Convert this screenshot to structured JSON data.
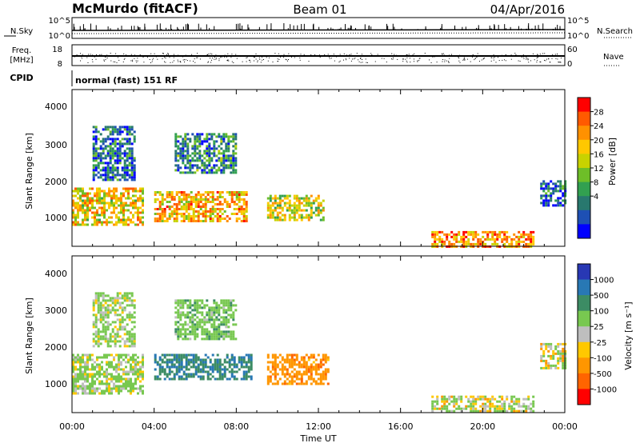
{
  "header": {
    "station": "McMurdo (fitACF)",
    "beam": "Beam 01",
    "date": "04/Apr/2016"
  },
  "top_panels": {
    "nsky_label": "N.Sky",
    "nsky_ticks": [
      "10^5",
      "10^0"
    ],
    "nsearch_label": "N.Search",
    "nsearch_ticks": [
      "10^5",
      "10^0"
    ],
    "freq_label_1": "Freq.",
    "freq_label_2": "[MHz]",
    "freq_ticks": [
      "18",
      "8"
    ],
    "nave_label": "Nave",
    "nave_ticks": [
      "60",
      "0"
    ],
    "cpid_label": "CPID",
    "cpid_value": "normal (fast) 151 RF"
  },
  "axes": {
    "ylabel": "Slant Range [km]",
    "y_ticks": [
      "1000",
      "2000",
      "3000",
      "4000"
    ],
    "x_ticks": [
      "00:00",
      "04:00",
      "08:00",
      "12:00",
      "16:00",
      "20:00",
      "00:00"
    ],
    "xlabel": "Time UT"
  },
  "power_scale": {
    "label": "Power [dB]",
    "ticks": [
      "28",
      "24",
      "20",
      "16",
      "12",
      "8",
      "4"
    ],
    "colors": [
      "#ff0000",
      "#ff5a00",
      "#ff9100",
      "#ffc800",
      "#c8d200",
      "#6ebe28",
      "#32a050",
      "#28786e",
      "#1e50b4",
      "#0000ff"
    ]
  },
  "velocity_scale": {
    "label": "Velocity [m s⁻¹]",
    "ticks": [
      "1000",
      "500",
      "100",
      "25",
      "-25",
      "-100",
      "-500",
      "-1000"
    ],
    "colors": [
      "#2838b4",
      "#2878b4",
      "#3c8c64",
      "#78c850",
      "#bebebe",
      "#ffc800",
      "#ff9600",
      "#ff6400",
      "#ff0000"
    ]
  },
  "chart_data": {
    "type": "heatmap",
    "time_range_hours": [
      0,
      24
    ],
    "slant_range_km": [
      180,
      4500
    ],
    "power_panel": {
      "regions": [
        {
          "t": [
            0.0,
            3.5
          ],
          "r": [
            800,
            1800
          ],
          "value_db": 20
        },
        {
          "t": [
            4.0,
            8.5
          ],
          "r": [
            900,
            1700
          ],
          "value_db": 22
        },
        {
          "t": [
            9.5,
            12.3
          ],
          "r": [
            900,
            1600
          ],
          "value_db": 18
        },
        {
          "t": [
            1.0,
            3.0
          ],
          "r": [
            2000,
            3500
          ],
          "value_db": 8
        },
        {
          "t": [
            5.0,
            8.0
          ],
          "r": [
            2200,
            3300
          ],
          "value_db": 10
        },
        {
          "t": [
            17.5,
            22.5
          ],
          "r": [
            200,
            600
          ],
          "value_db": 24
        },
        {
          "t": [
            22.8,
            24.0
          ],
          "r": [
            1300,
            2000
          ],
          "value_db": 8
        }
      ]
    },
    "velocity_panel": {
      "regions": [
        {
          "t": [
            0.0,
            3.5
          ],
          "r": [
            700,
            1800
          ],
          "value_ms": 100
        },
        {
          "t": [
            4.0,
            8.7
          ],
          "r": [
            1100,
            1800
          ],
          "value_ms": 700
        },
        {
          "t": [
            9.5,
            12.5
          ],
          "r": [
            1000,
            1800
          ],
          "value_ms": -200
        },
        {
          "t": [
            1.0,
            3.0
          ],
          "r": [
            2000,
            3500
          ],
          "value_ms": 100
        },
        {
          "t": [
            5.0,
            8.0
          ],
          "r": [
            2200,
            3300
          ],
          "value_ms": 200
        },
        {
          "t": [
            17.5,
            22.5
          ],
          "r": [
            250,
            650
          ],
          "value_ms": 60
        },
        {
          "t": [
            22.8,
            24.0
          ],
          "r": [
            1400,
            2100
          ],
          "value_ms": 25
        }
      ]
    }
  }
}
